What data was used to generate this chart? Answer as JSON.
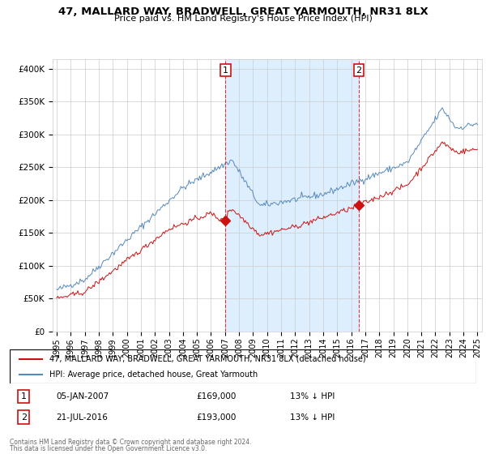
{
  "title": "47, MALLARD WAY, BRADWELL, GREAT YARMOUTH, NR31 8LX",
  "subtitle": "Price paid vs. HM Land Registry's House Price Index (HPI)",
  "ylabel_ticks": [
    "£0",
    "£50K",
    "£100K",
    "£150K",
    "£200K",
    "£250K",
    "£300K",
    "£350K",
    "£400K"
  ],
  "ytick_values": [
    0,
    50000,
    100000,
    150000,
    200000,
    250000,
    300000,
    350000,
    400000
  ],
  "ylim": [
    0,
    415000
  ],
  "xlim_start": 1994.7,
  "xlim_end": 2025.3,
  "hpi_color": "#5588bb",
  "hpi_fill_color": "#ddeeff",
  "price_color": "#cc1111",
  "marker1_date": 2007.03,
  "marker1_price": 169000,
  "marker1_label": "1",
  "marker2_date": 2016.55,
  "marker2_price": 193000,
  "marker2_label": "2",
  "legend_line1": "47, MALLARD WAY, BRADWELL, GREAT YARMOUTH, NR31 8LX (detached house)",
  "legend_line2": "HPI: Average price, detached house, Great Yarmouth",
  "footer1": "Contains HM Land Registry data © Crown copyright and database right 2024.",
  "footer2": "This data is licensed under the Open Government Licence v3.0.",
  "background_color": "#ffffff",
  "grid_color": "#cccccc"
}
